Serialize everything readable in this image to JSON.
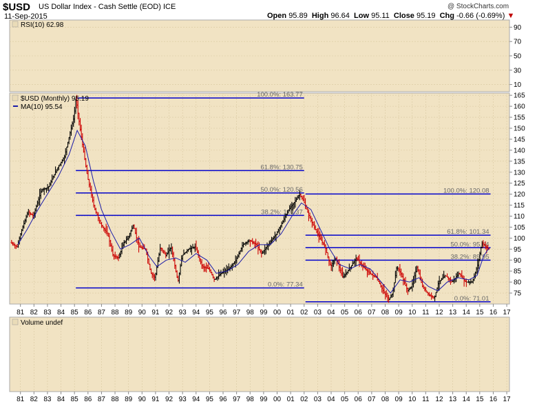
{
  "header": {
    "symbol": "$USD",
    "description": "US Dollar Index - Cash Settle (EOD) ICE",
    "date": "11-Sep-2015",
    "credit": "@ StockCharts.com",
    "ohlc": {
      "open_label": "Open",
      "open": "95.89",
      "high_label": "High",
      "high": "96.64",
      "low_label": "Low",
      "low": "95.11",
      "close_label": "Close",
      "close": "95.19",
      "chg_label": "Chg",
      "chg": "-0.66 (-0.69%)",
      "chg_arrow": "▼"
    }
  },
  "colors": {
    "panel_bg": "#f1e3c3",
    "axis_bg": "#ffffff",
    "fib_line": "#0000cc",
    "ma_line": "#1a1aa8",
    "up_bar": "#000000",
    "down_bar": "#cc0000",
    "fib_text": "#666666",
    "chg_down": "#c00000"
  },
  "rsi_panel": {
    "legend": "RSI(10) 62.98",
    "ticks": [
      "90",
      "70",
      "50",
      "30",
      "10"
    ]
  },
  "volume_panel": {
    "legend": "Volume undef"
  },
  "chart_data": {
    "type": "ohlc",
    "title": "$USD (Monthly) 95.19",
    "ma_legend": "MA(10) 95.54",
    "ylim": [
      70,
      166
    ],
    "y_ticks": [
      "165",
      "160",
      "155",
      "150",
      "145",
      "140",
      "135",
      "130",
      "125",
      "120",
      "115",
      "110",
      "105",
      "100",
      "95",
      "90",
      "85",
      "80",
      "75"
    ],
    "x_ticks": [
      "81",
      "82",
      "83",
      "84",
      "85",
      "86",
      "87",
      "88",
      "89",
      "90",
      "91",
      "92",
      "93",
      "94",
      "95",
      "96",
      "97",
      "98",
      "99",
      "00",
      "01",
      "02",
      "03",
      "04",
      "05",
      "06",
      "07",
      "08",
      "09",
      "10",
      "11",
      "12",
      "13",
      "14",
      "15",
      "16",
      "17"
    ],
    "x_range": [
      1980.2,
      2017.2
    ],
    "fibonacci": [
      {
        "set": 1,
        "x_start": 1985.1,
        "x_end": 2002.0,
        "levels": [
          {
            "label": "100.0%: 163.77",
            "value": 163.77
          },
          {
            "label": "61.8%: 130.75",
            "value": 130.75
          },
          {
            "label": "50.0%: 120.56",
            "value": 120.56
          },
          {
            "label": "38.2%: 110.37",
            "value": 110.37
          },
          {
            "label": "0.0%: 77.34",
            "value": 77.34
          }
        ]
      },
      {
        "set": 2,
        "x_start": 2002.1,
        "x_end": 2015.8,
        "levels": [
          {
            "label": "100.0%: 120.08",
            "value": 120.08
          },
          {
            "label": "61.8%: 101.34",
            "value": 101.34
          },
          {
            "label": "50.0%: 95.64",
            "value": 95.64
          },
          {
            "label": "38.2%: 89.95",
            "value": 89.95
          },
          {
            "label": "0.0%: 71.01",
            "value": 71.01
          }
        ]
      }
    ],
    "price_path": [
      [
        1980.3,
        98
      ],
      [
        1980.8,
        96
      ],
      [
        1981.1,
        103
      ],
      [
        1981.6,
        112
      ],
      [
        1982.0,
        110
      ],
      [
        1982.6,
        122
      ],
      [
        1983.1,
        123
      ],
      [
        1983.7,
        131
      ],
      [
        1984.3,
        137
      ],
      [
        1984.6,
        145
      ],
      [
        1985.0,
        155
      ],
      [
        1985.15,
        163.5
      ],
      [
        1985.5,
        148
      ],
      [
        1986.0,
        128
      ],
      [
        1986.5,
        114
      ],
      [
        1987.0,
        106
      ],
      [
        1987.5,
        102
      ],
      [
        1987.9,
        92
      ],
      [
        1988.3,
        91
      ],
      [
        1988.7,
        98
      ],
      [
        1989.0,
        100
      ],
      [
        1989.4,
        106
      ],
      [
        1989.8,
        96
      ],
      [
        1990.3,
        95
      ],
      [
        1990.7,
        84
      ],
      [
        1991.0,
        82
      ],
      [
        1991.4,
        96
      ],
      [
        1991.8,
        92
      ],
      [
        1992.2,
        96
      ],
      [
        1992.7,
        80
      ],
      [
        1993.0,
        92
      ],
      [
        1993.5,
        95
      ],
      [
        1994.0,
        96
      ],
      [
        1994.5,
        87
      ],
      [
        1995.0,
        86
      ],
      [
        1995.4,
        81
      ],
      [
        1995.9,
        84
      ],
      [
        1996.5,
        86
      ],
      [
        1997.0,
        90
      ],
      [
        1997.5,
        97
      ],
      [
        1998.0,
        99
      ],
      [
        1998.5,
        97
      ],
      [
        1998.9,
        93
      ],
      [
        1999.5,
        98
      ],
      [
        2000.0,
        102
      ],
      [
        2000.5,
        108
      ],
      [
        2000.9,
        113
      ],
      [
        2001.4,
        117
      ],
      [
        2001.7,
        120
      ],
      [
        2002.0,
        117
      ],
      [
        2002.4,
        110
      ],
      [
        2002.8,
        105
      ],
      [
        2003.2,
        100
      ],
      [
        2003.6,
        96
      ],
      [
        2004.0,
        87
      ],
      [
        2004.4,
        91
      ],
      [
        2004.9,
        82
      ],
      [
        2005.4,
        86
      ],
      [
        2005.9,
        91
      ],
      [
        2006.4,
        87
      ],
      [
        2006.9,
        84
      ],
      [
        2007.4,
        82
      ],
      [
        2007.9,
        76
      ],
      [
        2008.3,
        72
      ],
      [
        2008.6,
        75
      ],
      [
        2008.9,
        87
      ],
      [
        2009.2,
        84
      ],
      [
        2009.7,
        76
      ],
      [
        2010.0,
        78
      ],
      [
        2010.4,
        87
      ],
      [
        2010.8,
        78
      ],
      [
        2011.3,
        74
      ],
      [
        2011.7,
        73
      ],
      [
        2012.0,
        80
      ],
      [
        2012.5,
        83
      ],
      [
        2013.0,
        80
      ],
      [
        2013.5,
        84
      ],
      [
        2014.0,
        80
      ],
      [
        2014.5,
        80
      ],
      [
        2014.9,
        88
      ],
      [
        2015.2,
        98
      ],
      [
        2015.5,
        96
      ],
      [
        2015.7,
        95.19
      ]
    ],
    "ma_path": [
      [
        1980.8,
        97
      ],
      [
        1981.5,
        104
      ],
      [
        1982.3,
        113
      ],
      [
        1983.0,
        120
      ],
      [
        1983.8,
        128
      ],
      [
        1984.6,
        138
      ],
      [
        1985.2,
        149
      ],
      [
        1985.8,
        142
      ],
      [
        1986.4,
        126
      ],
      [
        1987.0,
        113
      ],
      [
        1987.7,
        103
      ],
      [
        1988.4,
        95
      ],
      [
        1989.1,
        97
      ],
      [
        1989.8,
        100
      ],
      [
        1990.5,
        92
      ],
      [
        1991.1,
        87
      ],
      [
        1991.8,
        90
      ],
      [
        1992.5,
        91
      ],
      [
        1993.2,
        89
      ],
      [
        1994.0,
        93
      ],
      [
        1994.8,
        90
      ],
      [
        1995.5,
        84
      ],
      [
        1996.3,
        85
      ],
      [
        1997.1,
        88
      ],
      [
        1997.9,
        94
      ],
      [
        1998.7,
        97
      ],
      [
        1999.5,
        97
      ],
      [
        2000.3,
        102
      ],
      [
        2001.1,
        110
      ],
      [
        2001.8,
        116
      ],
      [
        2002.5,
        113
      ],
      [
        2003.2,
        104
      ],
      [
        2003.9,
        95
      ],
      [
        2004.6,
        88
      ],
      [
        2005.4,
        86
      ],
      [
        2006.1,
        88
      ],
      [
        2006.9,
        86
      ],
      [
        2007.7,
        80
      ],
      [
        2008.4,
        75
      ],
      [
        2009.1,
        81
      ],
      [
        2009.8,
        80
      ],
      [
        2010.5,
        82
      ],
      [
        2011.2,
        78
      ],
      [
        2011.9,
        76
      ],
      [
        2012.6,
        80
      ],
      [
        2013.4,
        82
      ],
      [
        2014.2,
        81
      ],
      [
        2014.8,
        83
      ],
      [
        2015.3,
        92
      ],
      [
        2015.7,
        95.54
      ]
    ]
  }
}
